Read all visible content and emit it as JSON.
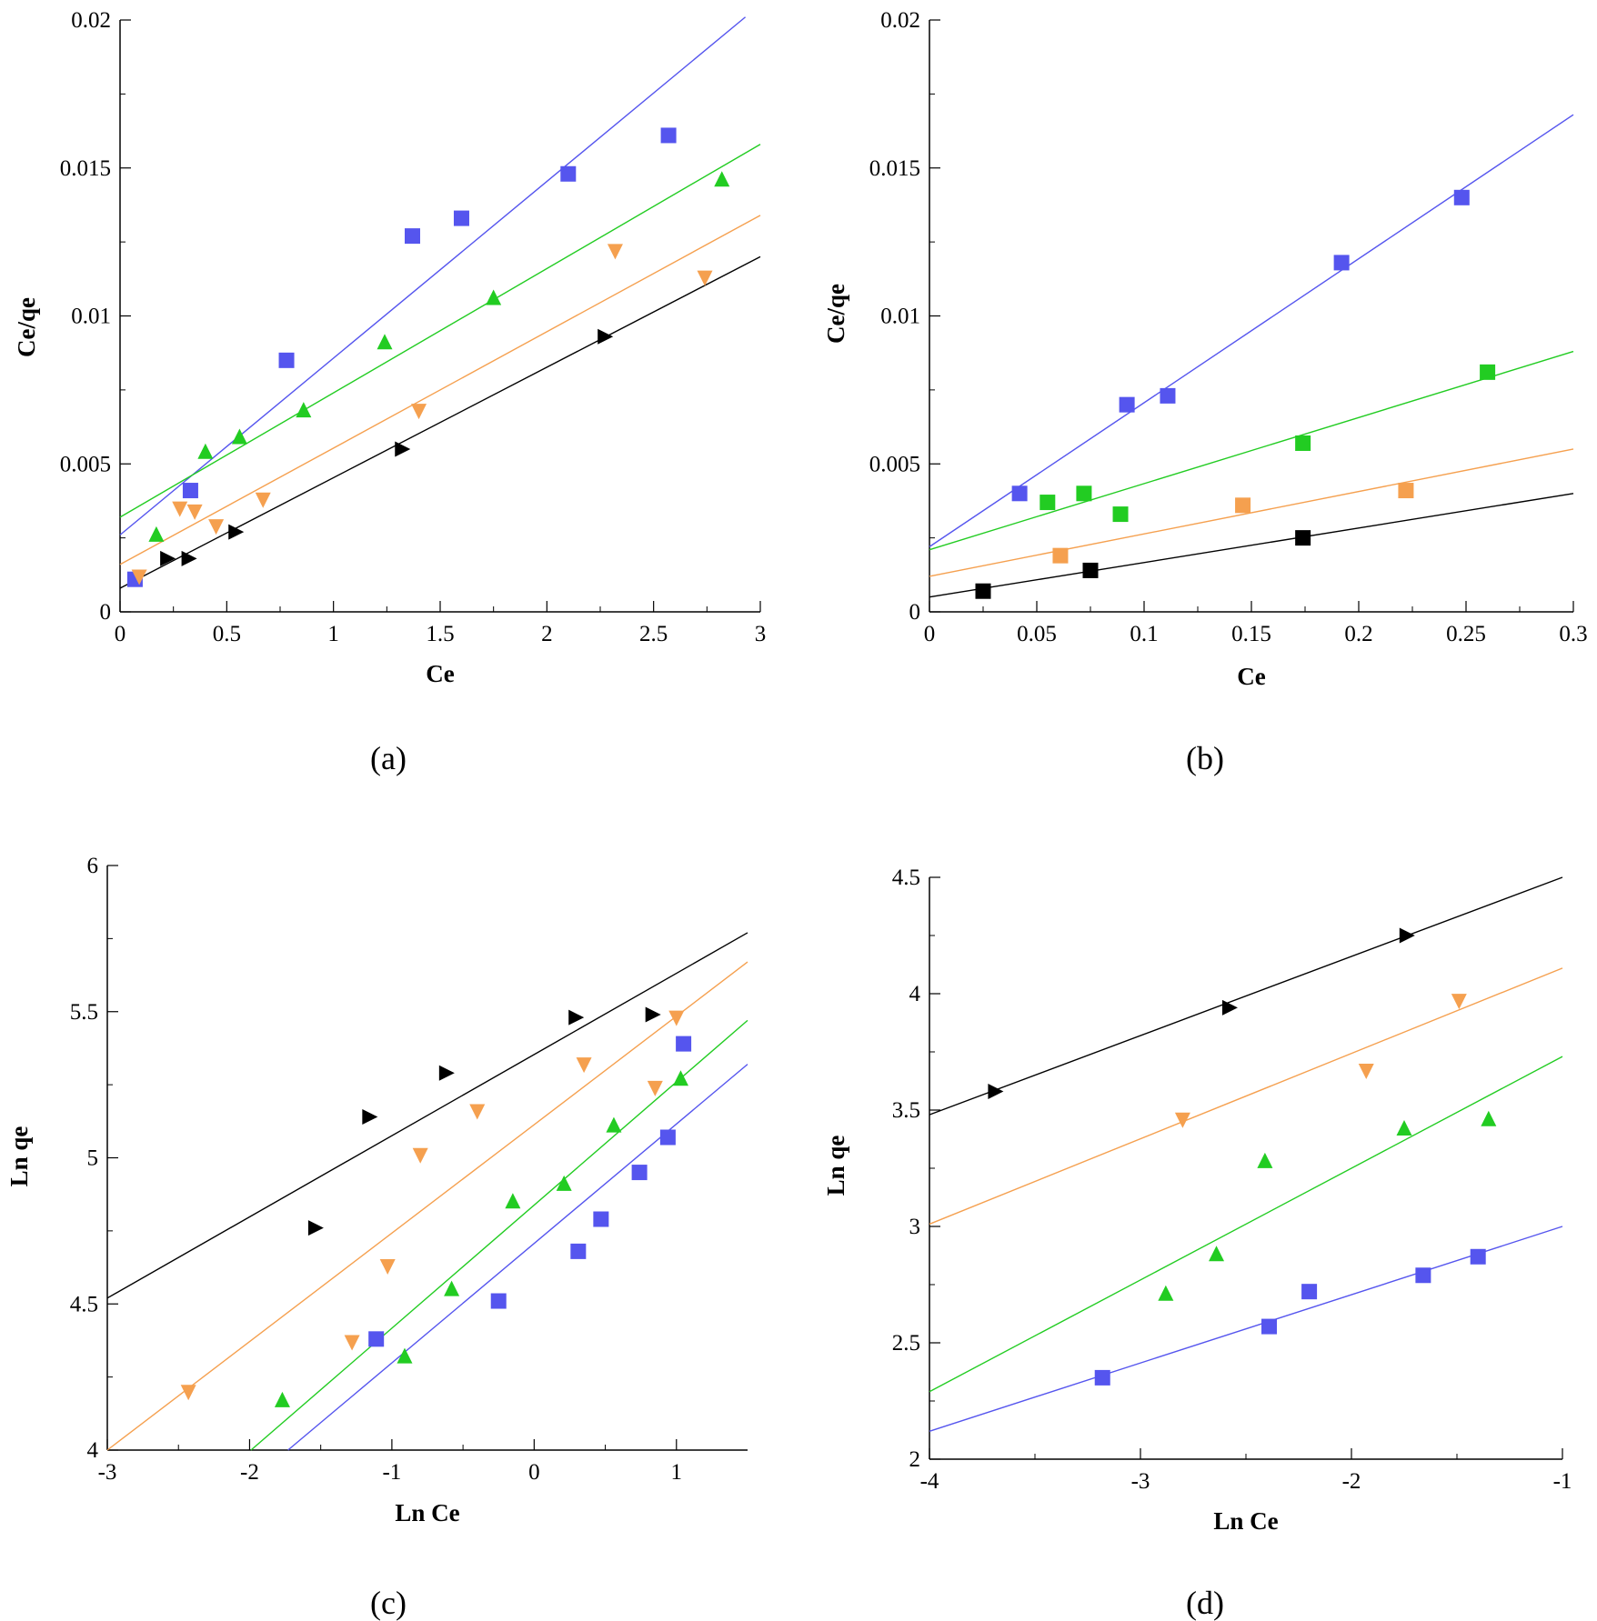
{
  "chart_data": [
    {
      "type": "scatter",
      "panel": "(a)",
      "xlabel": "Ce",
      "ylabel": "Ce/qe",
      "xlim": [
        0,
        3
      ],
      "ylim": [
        0,
        0.02
      ],
      "grid": false,
      "xticks": [
        {
          "value": 0,
          "label": "0"
        },
        {
          "value": 0.5,
          "label": "0.5"
        },
        {
          "value": 1,
          "label": "1"
        },
        {
          "value": 1.5,
          "label": "1.5"
        },
        {
          "value": 2,
          "label": "2"
        },
        {
          "value": 2.5,
          "label": "2.5"
        },
        {
          "value": 3,
          "label": "3"
        }
      ],
      "yticks": [
        {
          "value": 0,
          "label": "0"
        },
        {
          "value": 0.005,
          "label": "0.005"
        },
        {
          "value": 0.01,
          "label": "0.01"
        },
        {
          "value": 0.015,
          "label": "0.015"
        },
        {
          "value": 0.02,
          "label": "0.02"
        }
      ],
      "series": [
        {
          "name": "blue squares",
          "color": "#5555ee",
          "marker": "square",
          "x": [
            0.07,
            0.33,
            0.78,
            1.37,
            1.6,
            2.1,
            2.57
          ],
          "y": [
            0.0011,
            0.0041,
            0.0085,
            0.0127,
            0.0133,
            0.0148,
            0.0161
          ],
          "fit": [
            [
              0,
              0.0026
            ],
            [
              2.93,
              0.0201
            ]
          ]
        },
        {
          "name": "green triangles",
          "color": "#22cc22",
          "marker": "triangle-up",
          "x": [
            0.17,
            0.4,
            0.56,
            0.86,
            1.24,
            1.75,
            2.82
          ],
          "y": [
            0.0026,
            0.0054,
            0.0059,
            0.0068,
            0.0091,
            0.0106,
            0.0146
          ],
          "fit": [
            [
              0,
              0.0032
            ],
            [
              3,
              0.0158
            ]
          ]
        },
        {
          "name": "orange triangles",
          "color": "#f5a04f",
          "marker": "triangle-down",
          "x": [
            0.09,
            0.28,
            0.35,
            0.45,
            0.67,
            1.4,
            2.32,
            2.74
          ],
          "y": [
            0.0012,
            0.0035,
            0.0034,
            0.0029,
            0.0038,
            0.0068,
            0.0122,
            0.0113
          ],
          "fit": [
            [
              0,
              0.0016
            ],
            [
              3,
              0.0134
            ]
          ]
        },
        {
          "name": "black triangles",
          "color": "#000000",
          "marker": "triangle-right",
          "x": [
            0.22,
            0.32,
            0.54,
            1.32,
            2.27
          ],
          "y": [
            0.0018,
            0.0018,
            0.0027,
            0.0055,
            0.0093
          ],
          "fit": [
            [
              0,
              0.0008
            ],
            [
              3,
              0.012
            ]
          ]
        }
      ]
    },
    {
      "type": "scatter",
      "panel": "(b)",
      "xlabel": "Ce",
      "ylabel": "Ce/qe",
      "xlim": [
        0,
        0.3
      ],
      "ylim": [
        0,
        0.02
      ],
      "grid": false,
      "xticks": [
        {
          "value": 0,
          "label": "0"
        },
        {
          "value": 0.05,
          "label": "0.05"
        },
        {
          "value": 0.1,
          "label": "0.1"
        },
        {
          "value": 0.15,
          "label": "0.15"
        },
        {
          "value": 0.2,
          "label": "0.2"
        },
        {
          "value": 0.25,
          "label": "0.25"
        },
        {
          "value": 0.3,
          "label": "0.3"
        }
      ],
      "yticks": [
        {
          "value": 0,
          "label": "0"
        },
        {
          "value": 0.005,
          "label": "0.005"
        },
        {
          "value": 0.01,
          "label": "0.01"
        },
        {
          "value": 0.015,
          "label": "0.015"
        },
        {
          "value": 0.02,
          "label": "0.02"
        }
      ],
      "series": [
        {
          "name": "blue squares",
          "color": "#5555ee",
          "marker": "square",
          "x": [
            0.042,
            0.092,
            0.111,
            0.192,
            0.248
          ],
          "y": [
            0.004,
            0.007,
            0.0073,
            0.0118,
            0.014
          ],
          "fit": [
            [
              0,
              0.0022
            ],
            [
              0.3,
              0.0168
            ]
          ]
        },
        {
          "name": "green squares",
          "color": "#22cc22",
          "marker": "square",
          "x": [
            0.055,
            0.072,
            0.089,
            0.174,
            0.26
          ],
          "y": [
            0.0037,
            0.004,
            0.0033,
            0.0057,
            0.0081
          ],
          "fit": [
            [
              0,
              0.0021
            ],
            [
              0.3,
              0.0088
            ]
          ]
        },
        {
          "name": "orange squares",
          "color": "#f5a04f",
          "marker": "square",
          "x": [
            0.061,
            0.146,
            0.222
          ],
          "y": [
            0.0019,
            0.0036,
            0.0041
          ],
          "fit": [
            [
              0,
              0.0012
            ],
            [
              0.3,
              0.0055
            ]
          ]
        },
        {
          "name": "black squares",
          "color": "#000000",
          "marker": "square",
          "x": [
            0.025,
            0.075,
            0.174
          ],
          "y": [
            0.0007,
            0.0014,
            0.0025
          ],
          "fit": [
            [
              0,
              0.0005
            ],
            [
              0.3,
              0.004
            ]
          ]
        }
      ]
    },
    {
      "type": "scatter",
      "panel": "(c)",
      "xlabel": "Ln Ce",
      "ylabel": "Ln qe",
      "xlim": [
        -3,
        1.5
      ],
      "ylim": [
        4,
        6
      ],
      "grid": false,
      "xticks": [
        {
          "value": -3,
          "label": "-3"
        },
        {
          "value": -2,
          "label": "-2"
        },
        {
          "value": -1,
          "label": "-1"
        },
        {
          "value": 0,
          "label": "0"
        },
        {
          "value": 1,
          "label": "1"
        }
      ],
      "yticks": [
        {
          "value": 4,
          "label": "4"
        },
        {
          "value": 4.5,
          "label": "4.5"
        },
        {
          "value": 5,
          "label": "5"
        },
        {
          "value": 5.5,
          "label": "5.5"
        },
        {
          "value": 6,
          "label": "6"
        }
      ],
      "series": [
        {
          "name": "black triangles",
          "color": "#000000",
          "marker": "triangle-right",
          "x": [
            -1.54,
            -1.16,
            -0.62,
            0.29,
            0.83
          ],
          "y": [
            4.76,
            5.14,
            5.29,
            5.48,
            5.49
          ],
          "fit": [
            [
              -3,
              4.52
            ],
            [
              1.5,
              5.77
            ]
          ]
        },
        {
          "name": "orange triangles",
          "color": "#f5a04f",
          "marker": "triangle-down",
          "x": [
            -2.43,
            -1.28,
            -1.03,
            -0.8,
            -0.4,
            0.35,
            0.85,
            1.0
          ],
          "y": [
            4.2,
            4.37,
            4.63,
            5.01,
            5.16,
            5.32,
            5.24,
            5.48
          ],
          "fit": [
            [
              -3,
              4.0
            ],
            [
              1.5,
              5.67
            ]
          ]
        },
        {
          "name": "green triangles",
          "color": "#22cc22",
          "marker": "triangle-up",
          "x": [
            -1.77,
            -0.91,
            -0.58,
            -0.15,
            0.21,
            0.56,
            1.03
          ],
          "y": [
            4.17,
            4.32,
            4.55,
            4.85,
            4.91,
            5.11,
            5.27
          ],
          "fit": [
            [
              -1.99,
              4.0
            ],
            [
              1.5,
              5.47
            ]
          ]
        },
        {
          "name": "blue squares",
          "color": "#5555ee",
          "marker": "square",
          "x": [
            -1.11,
            -0.25,
            0.31,
            0.47,
            0.74,
            0.94,
            1.05
          ],
          "y": [
            4.38,
            4.51,
            4.68,
            4.79,
            4.95,
            5.07,
            5.39
          ],
          "fit": [
            [
              -1.73,
              4.0
            ],
            [
              1.5,
              5.32
            ]
          ]
        }
      ]
    },
    {
      "type": "scatter",
      "panel": "(d)",
      "xlabel": "Ln Ce",
      "ylabel": "Ln qe",
      "xlim": [
        -4,
        -1
      ],
      "ylim": [
        2,
        4.5
      ],
      "grid": false,
      "xticks": [
        {
          "value": -4,
          "label": "-4"
        },
        {
          "value": -3,
          "label": "-3"
        },
        {
          "value": -2,
          "label": "-2"
        },
        {
          "value": -1,
          "label": "-1"
        }
      ],
      "yticks": [
        {
          "value": 2,
          "label": "2"
        },
        {
          "value": 2.5,
          "label": "2.5"
        },
        {
          "value": 3,
          "label": "3"
        },
        {
          "value": 3.5,
          "label": "3.5"
        },
        {
          "value": 4,
          "label": "4"
        },
        {
          "value": 4.5,
          "label": "4.5"
        }
      ],
      "series": [
        {
          "name": "black triangles",
          "color": "#000000",
          "marker": "triangle-right",
          "x": [
            -3.69,
            -2.58,
            -1.74
          ],
          "y": [
            3.58,
            3.94,
            4.25
          ],
          "fit": [
            [
              -4,
              3.48
            ],
            [
              -1,
              4.5
            ]
          ]
        },
        {
          "name": "orange triangles",
          "color": "#f5a04f",
          "marker": "triangle-down",
          "x": [
            -2.8,
            -1.93,
            -1.49
          ],
          "y": [
            3.46,
            3.67,
            3.97
          ],
          "fit": [
            [
              -4,
              3.01
            ],
            [
              -1,
              4.11
            ]
          ]
        },
        {
          "name": "green triangles",
          "color": "#22cc22",
          "marker": "triangle-up",
          "x": [
            -2.88,
            -2.64,
            -2.41,
            -1.75,
            -1.35
          ],
          "y": [
            2.71,
            2.88,
            3.28,
            3.42,
            3.46
          ],
          "fit": [
            [
              -4,
              2.29
            ],
            [
              -1,
              3.73
            ]
          ]
        },
        {
          "name": "blue squares",
          "color": "#5555ee",
          "marker": "square",
          "x": [
            -3.18,
            -2.39,
            -2.2,
            -1.66,
            -1.4
          ],
          "y": [
            2.35,
            2.57,
            2.72,
            2.79,
            2.87
          ],
          "fit": [
            [
              -4,
              2.12
            ],
            [
              -1,
              3.0
            ]
          ]
        }
      ]
    }
  ]
}
